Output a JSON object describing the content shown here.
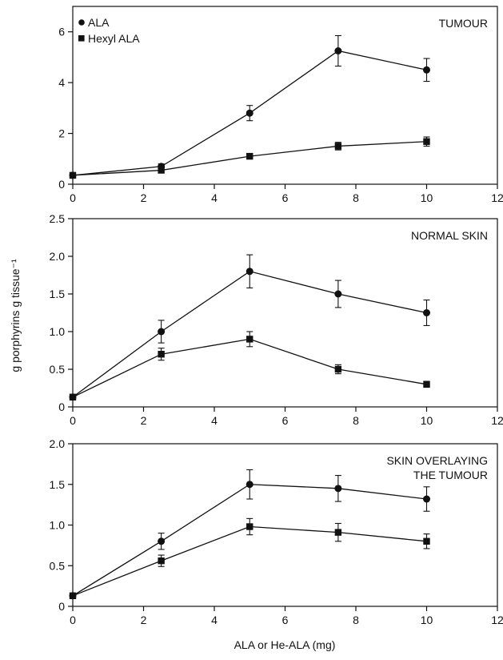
{
  "figure": {
    "ylabel": "g porphyrins g tissue⁻¹",
    "xlabel": "ALA or He-ALA (mg)"
  },
  "legend": [
    {
      "name": "ALA",
      "marker": "circle"
    },
    {
      "name": "Hexyl ALA",
      "marker": "square"
    }
  ],
  "colors": {
    "ink": "#111111",
    "background": "#ffffff"
  },
  "chart_data": [
    {
      "type": "line",
      "panel_label": [
        "TUMOUR"
      ],
      "xlim": [
        0,
        12
      ],
      "ylim": [
        0,
        7
      ],
      "xticks": [
        0,
        2,
        4,
        6,
        8,
        10,
        12
      ],
      "yticks": [
        0,
        2,
        4,
        6
      ],
      "ytick_labels": [
        "0",
        "2",
        "4",
        "6"
      ],
      "series": [
        {
          "name": "ALA",
          "marker": "circle",
          "x": [
            0,
            2.5,
            5,
            7.5,
            10
          ],
          "y": [
            0.35,
            0.7,
            2.8,
            5.25,
            4.5
          ],
          "err": [
            0.05,
            0.1,
            0.3,
            0.6,
            0.45
          ]
        },
        {
          "name": "Hexyl ALA",
          "marker": "square",
          "x": [
            0,
            2.5,
            5,
            7.5,
            10
          ],
          "y": [
            0.35,
            0.55,
            1.1,
            1.5,
            1.68
          ],
          "err": [
            0.05,
            0.08,
            0.1,
            0.15,
            0.18
          ]
        }
      ]
    },
    {
      "type": "line",
      "panel_label": [
        "NORMAL SKIN"
      ],
      "xlim": [
        0,
        12
      ],
      "ylim": [
        0,
        2.5
      ],
      "xticks": [
        0,
        2,
        4,
        6,
        8,
        10,
        12
      ],
      "yticks": [
        0,
        0.5,
        1.0,
        1.5,
        2.0,
        2.5
      ],
      "ytick_labels": [
        "0",
        "0.5",
        "1.0",
        "1.5",
        "2.0",
        "2.5"
      ],
      "series": [
        {
          "name": "ALA",
          "marker": "circle",
          "x": [
            0,
            2.5,
            5,
            7.5,
            10
          ],
          "y": [
            0.13,
            1.0,
            1.8,
            1.5,
            1.25
          ],
          "err": [
            0.02,
            0.15,
            0.22,
            0.18,
            0.17
          ]
        },
        {
          "name": "Hexyl ALA",
          "marker": "square",
          "x": [
            0,
            2.5,
            5,
            7.5,
            10
          ],
          "y": [
            0.13,
            0.7,
            0.9,
            0.5,
            0.3
          ],
          "err": [
            0.02,
            0.08,
            0.1,
            0.06,
            0.04
          ]
        }
      ]
    },
    {
      "type": "line",
      "panel_label": [
        "SKIN OVERLAYING",
        "THE TUMOUR"
      ],
      "xlim": [
        0,
        12
      ],
      "ylim": [
        0,
        2.0
      ],
      "xticks": [
        0,
        2,
        4,
        6,
        8,
        10,
        12
      ],
      "yticks": [
        0,
        0.5,
        1.0,
        1.5,
        2.0
      ],
      "ytick_labels": [
        "0",
        "0.5",
        "1.0",
        "1.5",
        "2.0"
      ],
      "series": [
        {
          "name": "ALA",
          "marker": "circle",
          "x": [
            0,
            2.5,
            5,
            7.5,
            10
          ],
          "y": [
            0.13,
            0.8,
            1.5,
            1.45,
            1.32
          ],
          "err": [
            0.02,
            0.1,
            0.18,
            0.16,
            0.15
          ]
        },
        {
          "name": "Hexyl ALA",
          "marker": "square",
          "x": [
            0,
            2.5,
            5,
            7.5,
            10
          ],
          "y": [
            0.13,
            0.56,
            0.98,
            0.91,
            0.8
          ],
          "err": [
            0.02,
            0.07,
            0.1,
            0.11,
            0.09
          ]
        }
      ]
    }
  ]
}
